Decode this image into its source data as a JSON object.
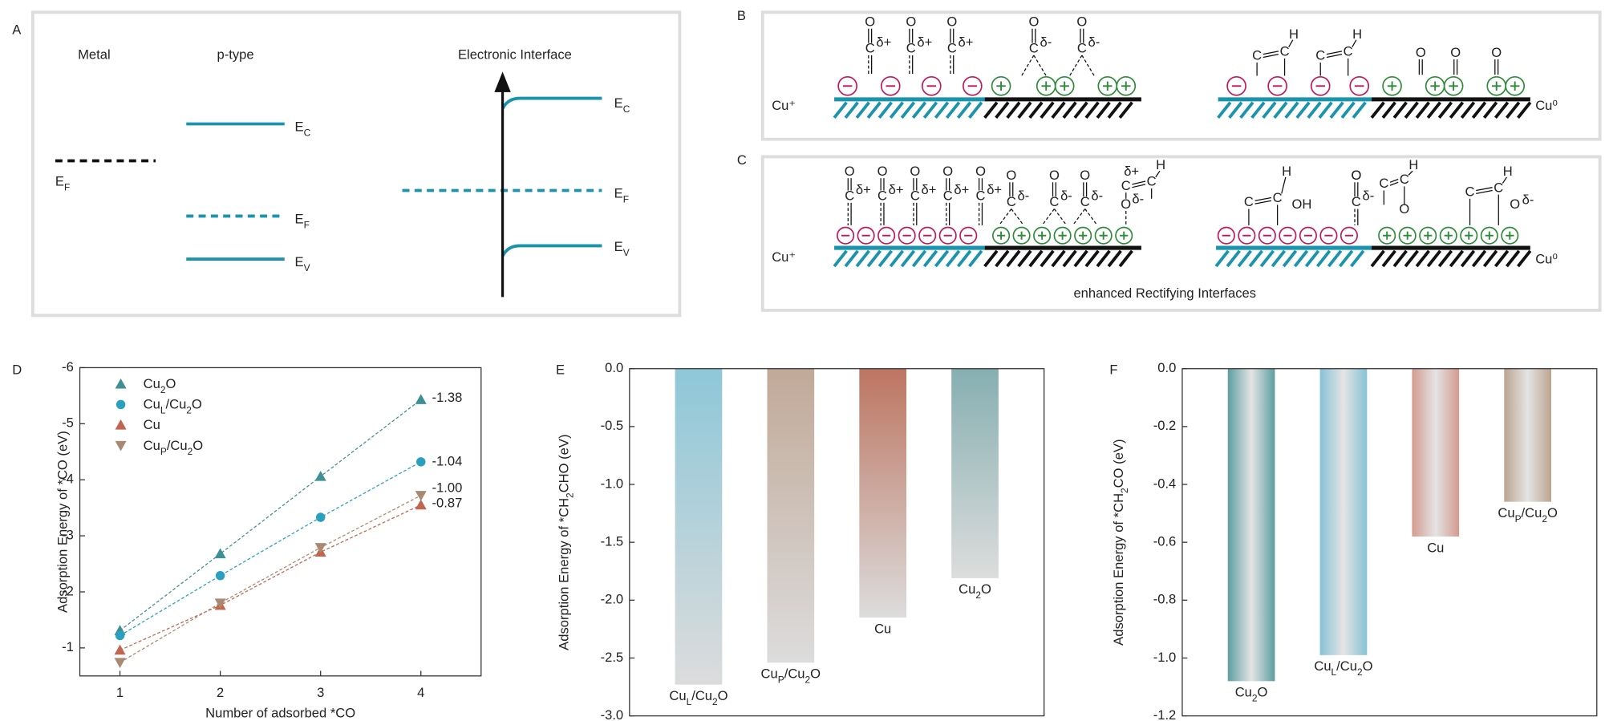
{
  "panels": {
    "A": {
      "label": "A",
      "metal": "Metal",
      "ptype": "p-type",
      "interface": "Electronic Interface",
      "EC": "EC",
      "EF": "EF",
      "EV": "EV"
    },
    "B": {
      "label": "B"
    },
    "C": {
      "label": "C",
      "caption": "enhanced Rectifying Interfaces"
    },
    "cu_plus": "Cu⁺",
    "cu_zero": "Cu⁰",
    "symbols": {
      "O": "O",
      "C": "C",
      "H": "H",
      "OH": "OH",
      "dplus": "δ+",
      "dminus": "δ-"
    }
  },
  "chart_data": [
    {
      "type": "line",
      "label": "D",
      "x_label": "Number of adsorbed *CO",
      "y_label": "Adsorption Energy of *CO (eV)",
      "x": [
        1,
        2,
        3,
        4
      ],
      "xlim": [
        0.6,
        4.6
      ],
      "xticks": [
        1,
        2,
        3,
        4
      ],
      "ylim": [
        -0.5,
        -6
      ],
      "yticks": [
        -6,
        -5,
        -4,
        -3,
        -2,
        -1
      ],
      "series": [
        {
          "name": "Cu2O",
          "color": "#3f8f95",
          "marker": "triangle-up",
          "values": [
            -1.31,
            -2.68,
            -4.06,
            -5.43
          ]
        },
        {
          "name": "CuL/Cu2O",
          "color": "#2aa0c0",
          "marker": "circle",
          "values": [
            -1.22,
            -2.29,
            -3.33,
            -4.32
          ]
        },
        {
          "name": "Cu",
          "color": "#c0664f",
          "marker": "triangle-up",
          "values": [
            -0.96,
            -1.76,
            -2.71,
            -3.55
          ]
        },
        {
          "name": "CuP/Cu2O",
          "color": "#a88a73",
          "marker": "triangle-down",
          "values": [
            -0.74,
            -1.8,
            -2.79,
            -3.72
          ]
        }
      ],
      "annotations": [
        {
          "text": "-1.38",
          "color": "#3f8f95"
        },
        {
          "text": "-1.04",
          "color": "#2aa0c0"
        },
        {
          "text": "-1.00",
          "color": "#c0967a"
        },
        {
          "text": "-0.87",
          "color": "#b0452f"
        }
      ]
    },
    {
      "type": "bar",
      "label": "E",
      "y_label": "Adsorption Energy of *CH2CHO (eV)",
      "gradient": "vertical",
      "categories": [
        "CuL/Cu2O",
        "CuP/Cu2O",
        "Cu",
        "Cu2O"
      ],
      "values": [
        -2.73,
        -2.54,
        -2.15,
        -1.81
      ],
      "colors": [
        "#8ec7d8",
        "#c1a998",
        "#bd7561",
        "#86afb1"
      ],
      "ylim": [
        -3,
        0
      ],
      "yticks": [
        {
          "value": 0,
          "label": "0.0"
        },
        -0.5,
        {
          "value": -1,
          "label": "-1.0"
        },
        -1.5,
        {
          "value": -2,
          "label": "-2.0"
        },
        -2.5,
        {
          "value": -3,
          "label": "-3.0"
        }
      ]
    },
    {
      "type": "bar",
      "label": "F",
      "y_label": "Adsorption Energy of *CH2CO (eV)",
      "gradient": "horizontal",
      "categories": [
        "Cu2O",
        "CuL/Cu2O",
        "Cu",
        "CuP/Cu2O"
      ],
      "values": [
        -1.08,
        -0.99,
        -0.58,
        -0.46
      ],
      "colors": [
        "#5d9ea1",
        "#86c2d6",
        "#d39a8e",
        "#bba490"
      ],
      "ylim": [
        -1.2,
        0
      ],
      "yticks": [
        {
          "value": 0,
          "label": "0.0"
        },
        -0.2,
        -0.4,
        -0.6,
        -0.8,
        {
          "value": -1,
          "label": "-1.0"
        },
        -1.2
      ]
    }
  ]
}
